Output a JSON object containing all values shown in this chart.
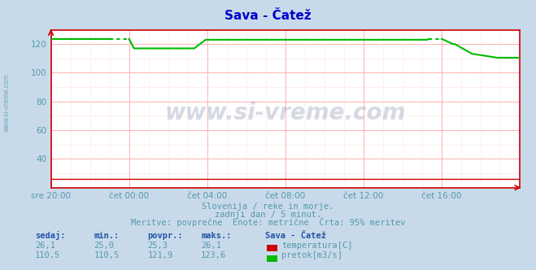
{
  "title": "Sava - Čatež",
  "title_color": "#0000cc",
  "bg_color": "#c8daea",
  "plot_bg_color": "#ffffff",
  "grid_color": "#ffb0b0",
  "grid_minor_color": "#ffe8e8",
  "text_color": "#5599aa",
  "label_bold_color": "#2255aa",
  "xlim": [
    0,
    288
  ],
  "ylim": [
    20,
    130
  ],
  "yticks": [
    40,
    60,
    80,
    100,
    120
  ],
  "xtick_positions": [
    0,
    48,
    96,
    144,
    192,
    240
  ],
  "xtick_labels": [
    "sre 20:00",
    "čet 00:00",
    "čet 04:00",
    "čet 08:00",
    "čet 12:00",
    "čet 16:00"
  ],
  "temp_color": "#cc0000",
  "flow_color": "#00bb00",
  "watermark": "www.si-vreme.com",
  "subtitle1": "Slovenija / reke in morje.",
  "subtitle2": "zadnji dan / 5 minut.",
  "subtitle3": "Meritve: povprečne  Enote: metrične  Črta: 95% meritev",
  "legend_title": "Sava - Čatež",
  "headers": [
    "sedaj:",
    "min.:",
    "povpr.:",
    "maks.:"
  ],
  "row1_vals": [
    "26,1",
    "25,0",
    "25,3",
    "26,1"
  ],
  "row2_vals": [
    "110,5",
    "110,5",
    "121,9",
    "123,6"
  ],
  "row1_label": "temperatura[C]",
  "row2_label": "pretok[m3/s]",
  "n_points": 289
}
